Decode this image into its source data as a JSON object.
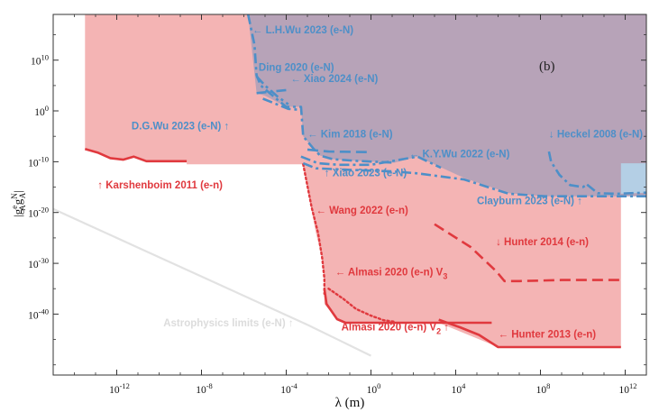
{
  "chart_data": {
    "type": "exclusion-plot",
    "panel_label": "(b)",
    "xlabel": "λ (m)",
    "ylabel": "|g_A^e g_A^N|",
    "xscale": "log10",
    "yscale": "log10",
    "xlim": [
      -15,
      13
    ],
    "ylim": [
      -52,
      19
    ],
    "x_ticks": [
      {
        "exp": -12,
        "label": "10^-12"
      },
      {
        "exp": -8,
        "label": "10^-8"
      },
      {
        "exp": -4,
        "label": "10^-4"
      },
      {
        "exp": 0,
        "label": "10^0"
      },
      {
        "exp": 4,
        "label": "10^4"
      },
      {
        "exp": 8,
        "label": "10^8"
      },
      {
        "exp": 12,
        "label": "10^12"
      }
    ],
    "y_ticks": [
      {
        "exp": 10,
        "label": "10^10"
      },
      {
        "exp": 0,
        "label": "10^0"
      },
      {
        "exp": -10,
        "label": "10^-10"
      },
      {
        "exp": -20,
        "label": "10^-20"
      },
      {
        "exp": -30,
        "label": "10^-30"
      },
      {
        "exp": -40,
        "label": "10^-40"
      }
    ],
    "regions": [
      {
        "name": "e-n excluded",
        "color": "#f4b4b4",
        "polygon": [
          [
            -13.5,
            19
          ],
          [
            -13.5,
            -7.5
          ],
          [
            -12.9,
            -8.2
          ],
          [
            -12.3,
            -9.3
          ],
          [
            -11.7,
            -9.6
          ],
          [
            -11.2,
            -9.0
          ],
          [
            -10.6,
            -9.9
          ],
          [
            -9.9,
            -9.9
          ],
          [
            -8.7,
            -9.9
          ],
          [
            -8.7,
            -10.5
          ],
          [
            -3.2,
            -10.5
          ],
          [
            -2.6,
            -24
          ],
          [
            -2.3,
            -29
          ],
          [
            -2.2,
            -33
          ],
          [
            -2.2,
            -38
          ],
          [
            -1.6,
            -41
          ],
          [
            -1.2,
            -41.7
          ],
          [
            0.8,
            -41.7
          ],
          [
            3.2,
            -41.7
          ],
          [
            6.0,
            -46.5
          ],
          [
            11.8,
            -46.5
          ],
          [
            11.8,
            19
          ]
        ]
      },
      {
        "name": "e-N excluded",
        "color": "#b7a3b8",
        "polygon": [
          [
            -5.8,
            19
          ],
          [
            -5.4,
            3.5
          ],
          [
            -5.0,
            3.0
          ],
          [
            -4.0,
            0.8
          ],
          [
            -3.3,
            0.8
          ],
          [
            -3.2,
            -5.0
          ],
          [
            -2.7,
            -7.5
          ],
          [
            -2.4,
            -8.8
          ],
          [
            -1.8,
            -9.5
          ],
          [
            -0.8,
            -9.8
          ],
          [
            1.1,
            -10.2
          ],
          [
            2.2,
            -9.0
          ],
          [
            4.4,
            -13.2
          ],
          [
            6.5,
            -16.2
          ],
          [
            8.2,
            -16.8
          ],
          [
            10.4,
            -16.8
          ],
          [
            12.0,
            -16.8
          ],
          [
            13,
            -16.8
          ],
          [
            13,
            19
          ]
        ]
      },
      {
        "name": "e-N excluded (light)",
        "color": "#b4cfe5",
        "polygon": [
          [
            11.8,
            -10.3
          ],
          [
            13,
            -10.3
          ],
          [
            13,
            -16.1
          ],
          [
            11.8,
            -16.3
          ]
        ]
      }
    ],
    "series": [
      {
        "name": "Karshenboim 2011 (e-n)",
        "color": "#e0393e",
        "style": "solid",
        "width": 2.6,
        "points": [
          [
            -13.5,
            -7.5
          ],
          [
            -12.9,
            -8.2
          ],
          [
            -12.3,
            -9.3
          ],
          [
            -11.7,
            -9.6
          ],
          [
            -11.2,
            -9.0
          ],
          [
            -10.6,
            -9.9
          ],
          [
            -9.9,
            -9.9
          ],
          [
            -8.7,
            -9.9
          ]
        ]
      },
      {
        "name": "Wang 2022 (e-n)",
        "color": "#e0393e",
        "style": "dotted",
        "width": 2.4,
        "points": [
          [
            -3.2,
            -10.5
          ],
          [
            -2.8,
            -19
          ],
          [
            -2.5,
            -24
          ],
          [
            -2.3,
            -29
          ],
          [
            -2.2,
            -33
          ],
          [
            -2.2,
            -36
          ]
        ]
      },
      {
        "name": "Almasi 2020 (e-n) V3",
        "color": "#e0393e",
        "style": "dotted",
        "width": 2.4,
        "points": [
          [
            -2.0,
            -35
          ],
          [
            -1.3,
            -37
          ],
          [
            -0.7,
            -39
          ],
          [
            0.0,
            -40.3
          ],
          [
            0.6,
            -41.2
          ],
          [
            1.1,
            -41.5
          ]
        ]
      },
      {
        "name": "Almasi 2020 (e-n) V2",
        "color": "#e0393e",
        "style": "solid",
        "width": 2.6,
        "points": [
          [
            -2.2,
            -35
          ],
          [
            -2.1,
            -38
          ],
          [
            -1.6,
            -41
          ],
          [
            -1.2,
            -41.7
          ],
          [
            0.8,
            -41.7
          ],
          [
            5.7,
            -41.7
          ]
        ]
      },
      {
        "name": "Hunter 2013 (e-n)",
        "color": "#e0393e",
        "style": "solid",
        "width": 2.6,
        "points": [
          [
            3.2,
            -41.1
          ],
          [
            4.2,
            -42.6
          ],
          [
            5.1,
            -44.1
          ],
          [
            6.0,
            -46.5
          ],
          [
            8.5,
            -46.5
          ],
          [
            11.8,
            -46.5
          ]
        ]
      },
      {
        "name": "Hunter 2014 (e-n)",
        "color": "#e0393e",
        "style": "dashed",
        "width": 2.6,
        "points": [
          [
            3.0,
            -22.3
          ],
          [
            4.7,
            -26.8
          ],
          [
            5.9,
            -31.5
          ],
          [
            6.3,
            -33.5
          ],
          [
            7.0,
            -33.5
          ],
          [
            9.0,
            -33.3
          ],
          [
            11.8,
            -33.3
          ]
        ]
      },
      {
        "name": "L.H.Wu 2023 (e-N)",
        "color": "#4d8fc8",
        "style": "dashdot",
        "width": 2.6,
        "points": [
          [
            -5.8,
            19
          ],
          [
            -5.5,
            13
          ],
          [
            -5.4,
            7.0
          ],
          [
            -5.2,
            5.0
          ],
          [
            -4.5,
            2.5
          ],
          [
            -4.0,
            0.8
          ],
          [
            -3.3,
            0.8
          ],
          [
            -3.2,
            -5.0
          ],
          [
            -2.7,
            -7.5
          ],
          [
            -2.4,
            -8.8
          ],
          [
            -1.8,
            -9.5
          ],
          [
            -0.8,
            -9.8
          ],
          [
            1.1,
            -10.2
          ]
        ]
      },
      {
        "name": "Ding 2020 (e-N)",
        "color": "#4d8fc8",
        "style": "dashdot",
        "width": 2.6,
        "points": [
          [
            -5.4,
            6.8
          ],
          [
            -5.0,
            5.0
          ],
          [
            -4.4,
            2.8
          ],
          [
            -3.9,
            1.3
          ]
        ]
      },
      {
        "name": "Xiao 2024 (e-N)",
        "color": "#4d8fc8",
        "style": "dashdot",
        "width": 2.6,
        "points": [
          [
            -5.4,
            3.5
          ],
          [
            -4.0,
            4.1
          ]
        ]
      },
      {
        "name": "D.G.Wu 2023 (e-N)",
        "color": "#4d8fc8",
        "style": "dashdot",
        "width": 2.6,
        "points": [
          [
            -5.1,
            2.4
          ],
          [
            -3.9,
            0.4
          ],
          [
            -3.3,
            0.2
          ]
        ]
      },
      {
        "name": "Kim 2018 (e-N)",
        "color": "#4d8fc8",
        "style": "dashed",
        "width": 2.6,
        "points": [
          [
            -3.0,
            -7.6
          ],
          [
            -2.0,
            -8.0
          ],
          [
            -0.2,
            -8.1
          ]
        ]
      },
      {
        "name": "K.Y.Wu 2022 (e-N)",
        "color": "#4d8fc8",
        "style": "dashdot",
        "width": 2.6,
        "points": [
          [
            -3.3,
            -9.0
          ],
          [
            -2.5,
            -10.3
          ],
          [
            -1.5,
            -10.6
          ],
          [
            0.0,
            -10.6
          ],
          [
            2.2,
            -9.0
          ],
          [
            3.3,
            -11.2
          ]
        ]
      },
      {
        "name": "Xiao 2023 (e-N)",
        "color": "#4d8fc8",
        "style": "dashdot",
        "width": 2.6,
        "points": [
          [
            -3.2,
            -10.3
          ],
          [
            -2.6,
            -11.3
          ],
          [
            -1.0,
            -11.6
          ],
          [
            1.0,
            -11.9
          ],
          [
            2.2,
            -12.3
          ],
          [
            4.4,
            -13.5
          ],
          [
            6.5,
            -16.3
          ],
          [
            8.2,
            -16.8
          ],
          [
            12.0,
            -16.8
          ],
          [
            13,
            -16.8
          ]
        ]
      },
      {
        "name": "Clayburn 2023 (e-N)",
        "color": "#4d8fc8",
        "style": "dashdot",
        "width": 2.6,
        "points": [
          [
            10.2,
            -14.5
          ],
          [
            10.7,
            -16.2
          ],
          [
            11.6,
            -16.3
          ],
          [
            13,
            -16.1
          ]
        ]
      },
      {
        "name": "Heckel 2008 (e-N)",
        "color": "#4d8fc8",
        "style": "dashdot",
        "width": 2.6,
        "points": [
          [
            8.4,
            -8.0
          ],
          [
            8.5,
            -10.0
          ],
          [
            8.9,
            -12.6
          ],
          [
            9.4,
            -14.6
          ],
          [
            10.0,
            -15.0
          ],
          [
            10.2,
            -14.5
          ]
        ]
      },
      {
        "name": "Astrophysics limits (e-N)",
        "color": "#e2e2e2",
        "style": "solid",
        "width": 2.2,
        "points": [
          [
            -15,
            -19.3
          ],
          [
            -11,
            -26.9
          ],
          [
            -7,
            -34.5
          ],
          [
            -3,
            -42.1
          ],
          [
            0,
            -48.2
          ]
        ]
      }
    ],
    "annotations": [
      {
        "text": "← L.H.Wu 2023 (e-N)",
        "color": "blue",
        "at": [
          -5.6,
          15.3
        ]
      },
      {
        "text": "Ding 2020 (e-N)",
        "color": "blue",
        "at": [
          -5.3,
          7.9
        ]
      },
      {
        "text": "← Xiao 2024 (e-N)",
        "color": "blue",
        "at": [
          -3.8,
          5.7
        ]
      },
      {
        "text": "D.G.Wu 2023 (e-N) ↑",
        "color": "blue",
        "at": [
          -11.3,
          -3.6
        ]
      },
      {
        "text": "← Kim 2018 (e-N)",
        "color": "blue",
        "at": [
          -3.0,
          -5.2
        ]
      },
      {
        "text": "↓ Heckel 2008 (e-N)",
        "color": "blue",
        "at": [
          8.4,
          -5.2
        ]
      },
      {
        "text": "← K.Y.Wu 2022 (e-N)",
        "color": "blue",
        "at": [
          1.8,
          -9.1
        ]
      },
      {
        "text": "↑ Xiao 2023 (e-N)",
        "color": "blue",
        "at": [
          -2.2,
          -12.9
        ]
      },
      {
        "text": "Clayburn 2023 (e-N) ↑",
        "color": "blue",
        "at": [
          5.0,
          -18.4
        ]
      },
      {
        "text": "↑ Karshenboim 2011 (e-n)",
        "color": "red",
        "at": [
          -12.9,
          -15.3
        ]
      },
      {
        "text": "← Wang 2022 (e-n)",
        "color": "red",
        "at": [
          -2.6,
          -20.2
        ]
      },
      {
        "text": "↓ Hunter 2014 (e-n)",
        "color": "red",
        "at": [
          5.9,
          -26.4
        ]
      },
      {
        "text": "← Almasi 2020 (e-n) V",
        "subscript": "3",
        "color": "red",
        "at": [
          -1.7,
          -32.4
        ]
      },
      {
        "text": "Almasi 2020 (e-n) V",
        "subscript": "2",
        "after": " ↑",
        "color": "red",
        "at": [
          -1.4,
          -43.2
        ]
      },
      {
        "text": "← Hunter 2013 (e-n)",
        "color": "red",
        "at": [
          6.0,
          -44.6
        ]
      },
      {
        "text": "Astrophysics limits (e-N) ↑",
        "color": "grey",
        "at": [
          -9.8,
          -42.4
        ]
      }
    ]
  }
}
